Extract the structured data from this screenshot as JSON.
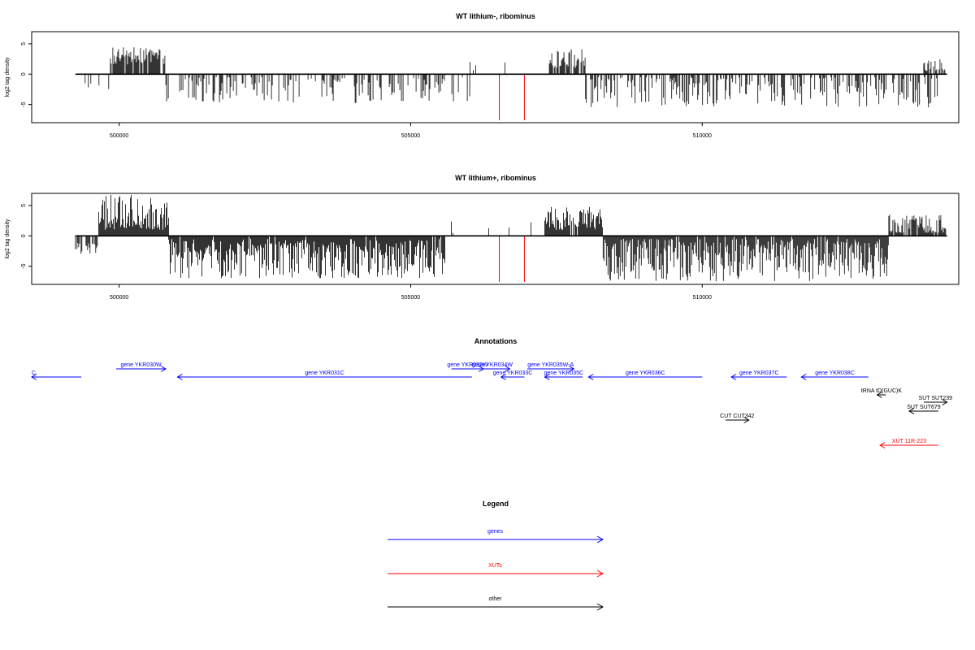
{
  "chart_data": [
    {
      "type": "bar",
      "title": "WT lithium-, ribominus",
      "ylabel": "log2 tag density",
      "xlim": [
        498500,
        514400
      ],
      "ylim": [
        -8,
        7
      ],
      "x_ticks": [
        500000,
        505000,
        510000
      ],
      "x_tick_labels": [
        "500000",
        "505000",
        "510000"
      ],
      "y_ticks": [
        -5,
        0,
        5
      ],
      "y_tick_labels": [
        "-5",
        "0",
        "5"
      ],
      "x_range": [
        499250,
        514200
      ],
      "red_markers": [
        506520,
        506950
      ],
      "segments": [
        {
          "from": 499250,
          "to": 499850,
          "dens": 0.12,
          "sign": -1,
          "lo": 1.0,
          "hi": 2.5
        },
        {
          "from": 499850,
          "to": 500800,
          "dens": 0.85,
          "sign": 1,
          "lo": 1.5,
          "hi": 4.5
        },
        {
          "from": 500800,
          "to": 506020,
          "dens": 0.35,
          "sign": -1,
          "lo": 0.5,
          "hi": 4.8
        },
        {
          "from": 506020,
          "to": 507300,
          "dens": 0.03,
          "sign": 1,
          "lo": 0.5,
          "hi": 3.0
        },
        {
          "from": 507350,
          "to": 508000,
          "dens": 0.75,
          "sign": 1,
          "lo": 1.0,
          "hi": 4.2
        },
        {
          "from": 508000,
          "to": 514050,
          "dens": 0.42,
          "sign": -1,
          "lo": 0.5,
          "hi": 5.5
        },
        {
          "from": 513800,
          "to": 514200,
          "dens": 0.6,
          "sign": 1,
          "lo": 0.5,
          "hi": 2.5
        }
      ]
    },
    {
      "type": "bar",
      "title": "WT lithium+, ribominus",
      "ylabel": "log2 tag density",
      "xlim": [
        498500,
        514400
      ],
      "ylim": [
        -8,
        7
      ],
      "x_ticks": [
        500000,
        505000,
        510000
      ],
      "x_tick_labels": [
        "500000",
        "505000",
        "510000"
      ],
      "y_ticks": [
        -5,
        0,
        5
      ],
      "y_tick_labels": [
        "-5",
        "0",
        "5"
      ],
      "x_range": [
        499250,
        514200
      ],
      "red_markers": [
        506520,
        506950
      ],
      "segments": [
        {
          "from": 499250,
          "to": 499650,
          "dens": 0.4,
          "sign": -1,
          "lo": 1.0,
          "hi": 3.0
        },
        {
          "from": 499650,
          "to": 500850,
          "dens": 1.0,
          "sign": 1,
          "lo": 1.0,
          "hi": 6.8
        },
        {
          "from": 500850,
          "to": 505600,
          "dens": 0.95,
          "sign": -1,
          "lo": 0.5,
          "hi": 7.0
        },
        {
          "from": 505600,
          "to": 507300,
          "dens": 0.05,
          "sign": 1,
          "lo": 0.5,
          "hi": 2.8
        },
        {
          "from": 507300,
          "to": 508300,
          "dens": 0.9,
          "sign": 1,
          "lo": 1.0,
          "hi": 4.8
        },
        {
          "from": 508300,
          "to": 513200,
          "dens": 0.95,
          "sign": -1,
          "lo": 0.5,
          "hi": 7.5
        },
        {
          "from": 513200,
          "to": 514200,
          "dens": 0.85,
          "sign": 1,
          "lo": 0.5,
          "hi": 3.5
        }
      ]
    }
  ],
  "annotations": {
    "title": "Annotations",
    "colors": {
      "genes": "#0000ff",
      "XUTs": "#ff0000",
      "other": "#000000"
    },
    "features": [
      {
        "label": "C",
        "kind": "genes",
        "from": 498500,
        "to": 499350,
        "dir": "-",
        "row": 1,
        "label_anchor": "start"
      },
      {
        "label": "gene YKR030W",
        "kind": "genes",
        "from": 499950,
        "to": 500800,
        "dir": "+",
        "row": 0
      },
      {
        "label": "gene YKR031C",
        "kind": "genes",
        "from": 501000,
        "to": 506050,
        "dir": "-",
        "row": 1
      },
      {
        "label": "gene YKR032W",
        "kind": "genes",
        "from": 505700,
        "to": 506250,
        "dir": "+",
        "row": 0
      },
      {
        "label": "gene YKR034W",
        "kind": "genes",
        "from": 506100,
        "to": 506700,
        "dir": "+",
        "row": 0
      },
      {
        "label": "gene YKR033C",
        "kind": "genes",
        "from": 506550,
        "to": 506950,
        "dir": "-",
        "row": 1
      },
      {
        "label": "gene YKR035W-A",
        "kind": "genes",
        "from": 507000,
        "to": 507800,
        "dir": "+",
        "row": 0
      },
      {
        "label": "gene YKR035C",
        "kind": "genes",
        "from": 507300,
        "to": 507950,
        "dir": "-",
        "row": 1
      },
      {
        "label": "gene YKR036C",
        "kind": "genes",
        "from": 508050,
        "to": 510000,
        "dir": "-",
        "row": 1
      },
      {
        "label": "gene YKR037C",
        "kind": "genes",
        "from": 510500,
        "to": 511450,
        "dir": "-",
        "row": 1
      },
      {
        "label": "gene YKR038C",
        "kind": "genes",
        "from": 511700,
        "to": 512850,
        "dir": "-",
        "row": 1
      },
      {
        "label": "tRNA tD(GUC)K",
        "kind": "other",
        "from": 513000,
        "to": 513150,
        "dir": "-",
        "row": 2
      },
      {
        "label": "SUT SUT239",
        "kind": "other",
        "from": 513800,
        "to": 514200,
        "dir": "+",
        "row": 3
      },
      {
        "label": "SUT SUT679",
        "kind": "other",
        "from": 513550,
        "to": 514050,
        "dir": "-",
        "row": 4
      },
      {
        "label": "CUT CUT342",
        "kind": "other",
        "from": 510400,
        "to": 510800,
        "dir": "+",
        "row": 5
      },
      {
        "label": "XUT 11R-223",
        "kind": "XUTs",
        "from": 513050,
        "to": 514050,
        "dir": "-",
        "row": 6
      }
    ]
  },
  "legend": {
    "title": "Legend",
    "items": [
      {
        "label": "genes",
        "color": "#0000ff"
      },
      {
        "label": "XUTs",
        "color": "#ff0000"
      },
      {
        "label": "other",
        "color": "#000000"
      }
    ]
  }
}
